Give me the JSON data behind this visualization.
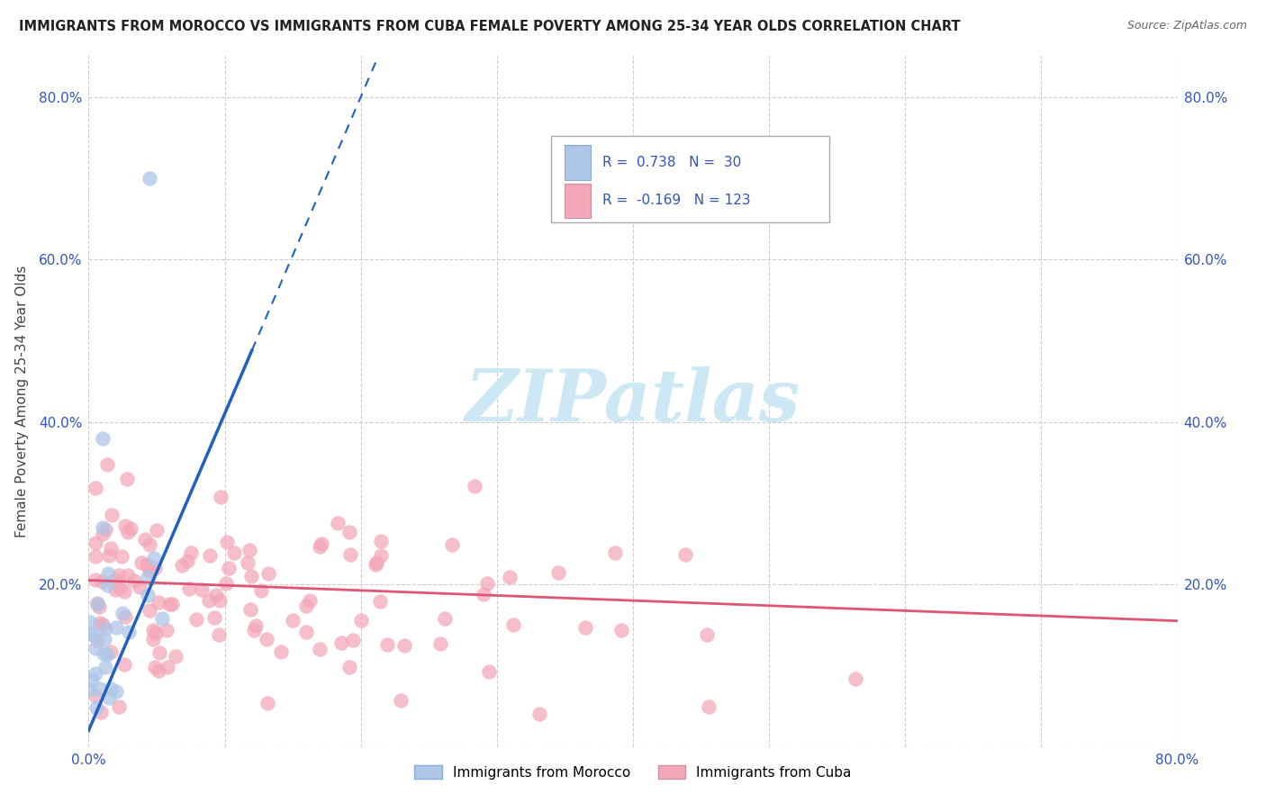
{
  "title": "IMMIGRANTS FROM MOROCCO VS IMMIGRANTS FROM CUBA FEMALE POVERTY AMONG 25-34 YEAR OLDS CORRELATION CHART",
  "source": "Source: ZipAtlas.com",
  "ylabel": "Female Poverty Among 25-34 Year Olds",
  "xlim": [
    0.0,
    0.8
  ],
  "ylim": [
    0.0,
    0.85
  ],
  "morocco_R": 0.738,
  "morocco_N": 30,
  "cuba_R": -0.169,
  "cuba_N": 123,
  "morocco_color": "#aec6e8",
  "cuba_color": "#f4a7b9",
  "morocco_line_color": "#2060c0",
  "cuba_line_color": "#e05575",
  "watermark_color": "#cce8f4"
}
